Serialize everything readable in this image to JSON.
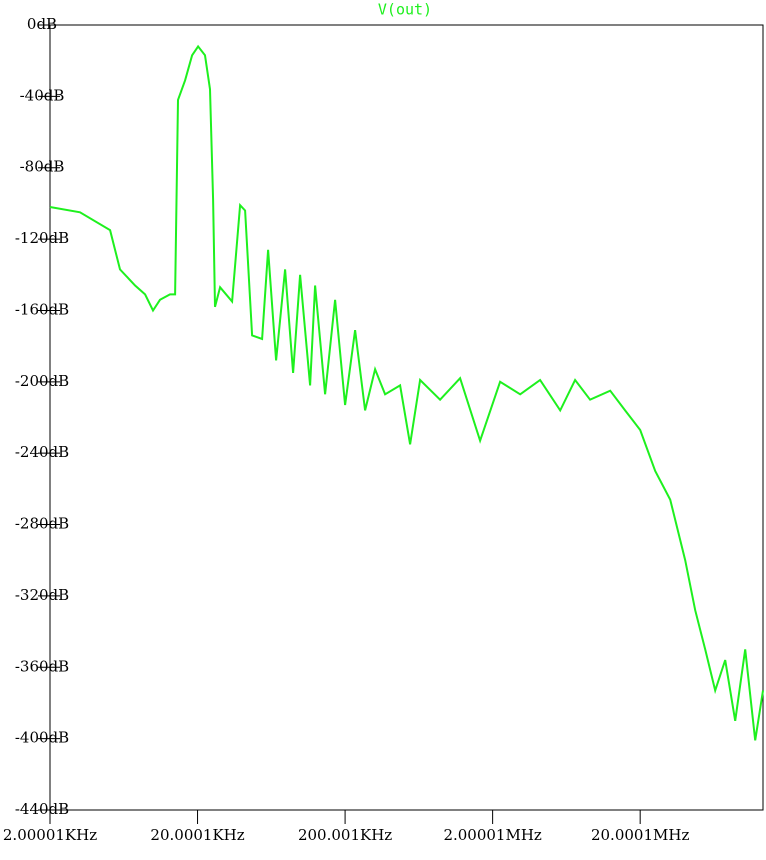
{
  "chart_data": {
    "type": "line",
    "title": "V(out)",
    "xscale": "log",
    "xlim": [
      2000,
      136000000
    ],
    "ylim": [
      -440,
      0
    ],
    "xticks": [
      {
        "value": 2000,
        "label": "2.00001KHz"
      },
      {
        "value": 20000,
        "label": "20.0001KHz"
      },
      {
        "value": 200000,
        "label": "200.001KHz"
      },
      {
        "value": 2000000,
        "label": "2.00001MHz"
      },
      {
        "value": 20000000,
        "label": "20.0001MHz"
      }
    ],
    "yticks": [
      {
        "value": 0,
        "label": "0dB"
      },
      {
        "value": -40,
        "label": "-40dB"
      },
      {
        "value": -80,
        "label": "-80dB"
      },
      {
        "value": -120,
        "label": "-120dB"
      },
      {
        "value": -160,
        "label": "-160dB"
      },
      {
        "value": -200,
        "label": "-200dB"
      },
      {
        "value": -240,
        "label": "-240dB"
      },
      {
        "value": -280,
        "label": "-280dB"
      },
      {
        "value": -320,
        "label": "-320dB"
      },
      {
        "value": -360,
        "label": "-360dB"
      },
      {
        "value": -400,
        "label": "-400dB"
      },
      {
        "value": -440,
        "label": "-440dB"
      }
    ],
    "x": [
      2000,
      3194,
      5106,
      5966,
      7542,
      8817,
      9986,
      11140,
      13020,
      14080,
      14750,
      16460,
      18360,
      20160,
      22480,
      24300,
      25480,
      26280,
      28420,
      34280,
      38840,
      41980,
      46840,
      54740,
      60120,
      68120,
      78380,
      88840,
      99080,
      115800,
      125200,
      146300,
      171100,
      200000,
      233800,
      273200,
      319400,
      373400,
      472000,
      551800,
      645000,
      881600,
      1204000,
      1646000,
      2248000,
      3074000,
      4198000,
      5738000,
      7250000,
      9162000,
      12520000,
      15820000,
      20000000,
      25280000,
      31940000,
      40380000,
      47200000,
      55180000,
      64500000,
      75420000,
      88160000,
      103060000,
      120480000,
      136000000
    ],
    "series": [
      {
        "name": "V(out)",
        "color": "#1ef01e",
        "values": [
          -102,
          -105,
          -115,
          -137,
          -146,
          -151,
          -160,
          -154,
          -151,
          -151,
          -42,
          -31,
          -17,
          -12,
          -17,
          -36,
          -98,
          -158,
          -147,
          -155,
          -101,
          -104,
          -174,
          -176,
          -126,
          -188,
          -137,
          -195,
          -140,
          -202,
          -146,
          -207,
          -154,
          -213,
          -171,
          -216,
          -193,
          -207,
          -202,
          -235,
          -199,
          -210,
          -198,
          -233,
          -200,
          -207,
          -199,
          -216,
          -199,
          -210,
          -205,
          -216,
          -227,
          -250,
          -266,
          -300,
          -328,
          -350,
          -373,
          -356,
          -390,
          -350,
          -401,
          -373
        ]
      }
    ]
  }
}
